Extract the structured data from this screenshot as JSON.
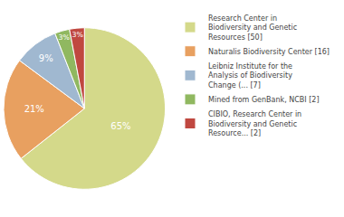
{
  "chart_data": {
    "type": "pie",
    "categories": [
      "Research Center in\nBiodiversity and Genetic\nResources [50]",
      "Naturalis Biodiversity Center [16]",
      "Leibniz Institute for the\nAnalysis of Biodiversity\nChange (... [7]",
      "Mined from GenBank, NCBI [2]",
      "CIBIO, Research Center in\nBiodiversity and Genetic\nResource... [2]"
    ],
    "values": [
      65,
      21,
      9,
      3,
      3
    ],
    "value_labels": [
      "65%",
      "21%",
      "9%",
      "3%",
      "3%"
    ],
    "colors": [
      "#d4d98a",
      "#e8a060",
      "#a0b8d0",
      "#90b860",
      "#c04840"
    ],
    "data_labels": true,
    "legend": "right"
  }
}
